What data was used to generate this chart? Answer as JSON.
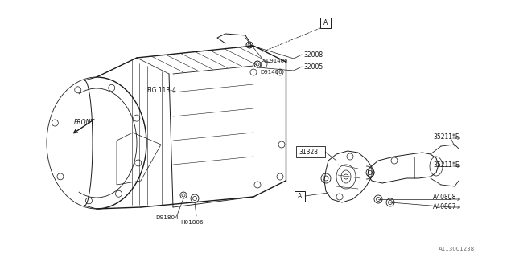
{
  "bg_color": "#ffffff",
  "line_color": "#1a1a1a",
  "fig_width": 6.4,
  "fig_height": 3.2,
  "dpi": 100,
  "watermark": "A113001238",
  "labels": {
    "fig_ref": "FIG.113-4",
    "front": "FRONT",
    "part_A_top": "A",
    "part_A_bottom": "A",
    "d91406_top": "D91406",
    "d91406_mid": "D91406",
    "d91804": "D91804",
    "h01806": "H01806",
    "n32008": "32008",
    "n32005": "32005",
    "n31328": "31328",
    "n35211f": "35211*F",
    "n35211e": "35211*E",
    "a40808": "A40808",
    "a40807": "A40807"
  }
}
